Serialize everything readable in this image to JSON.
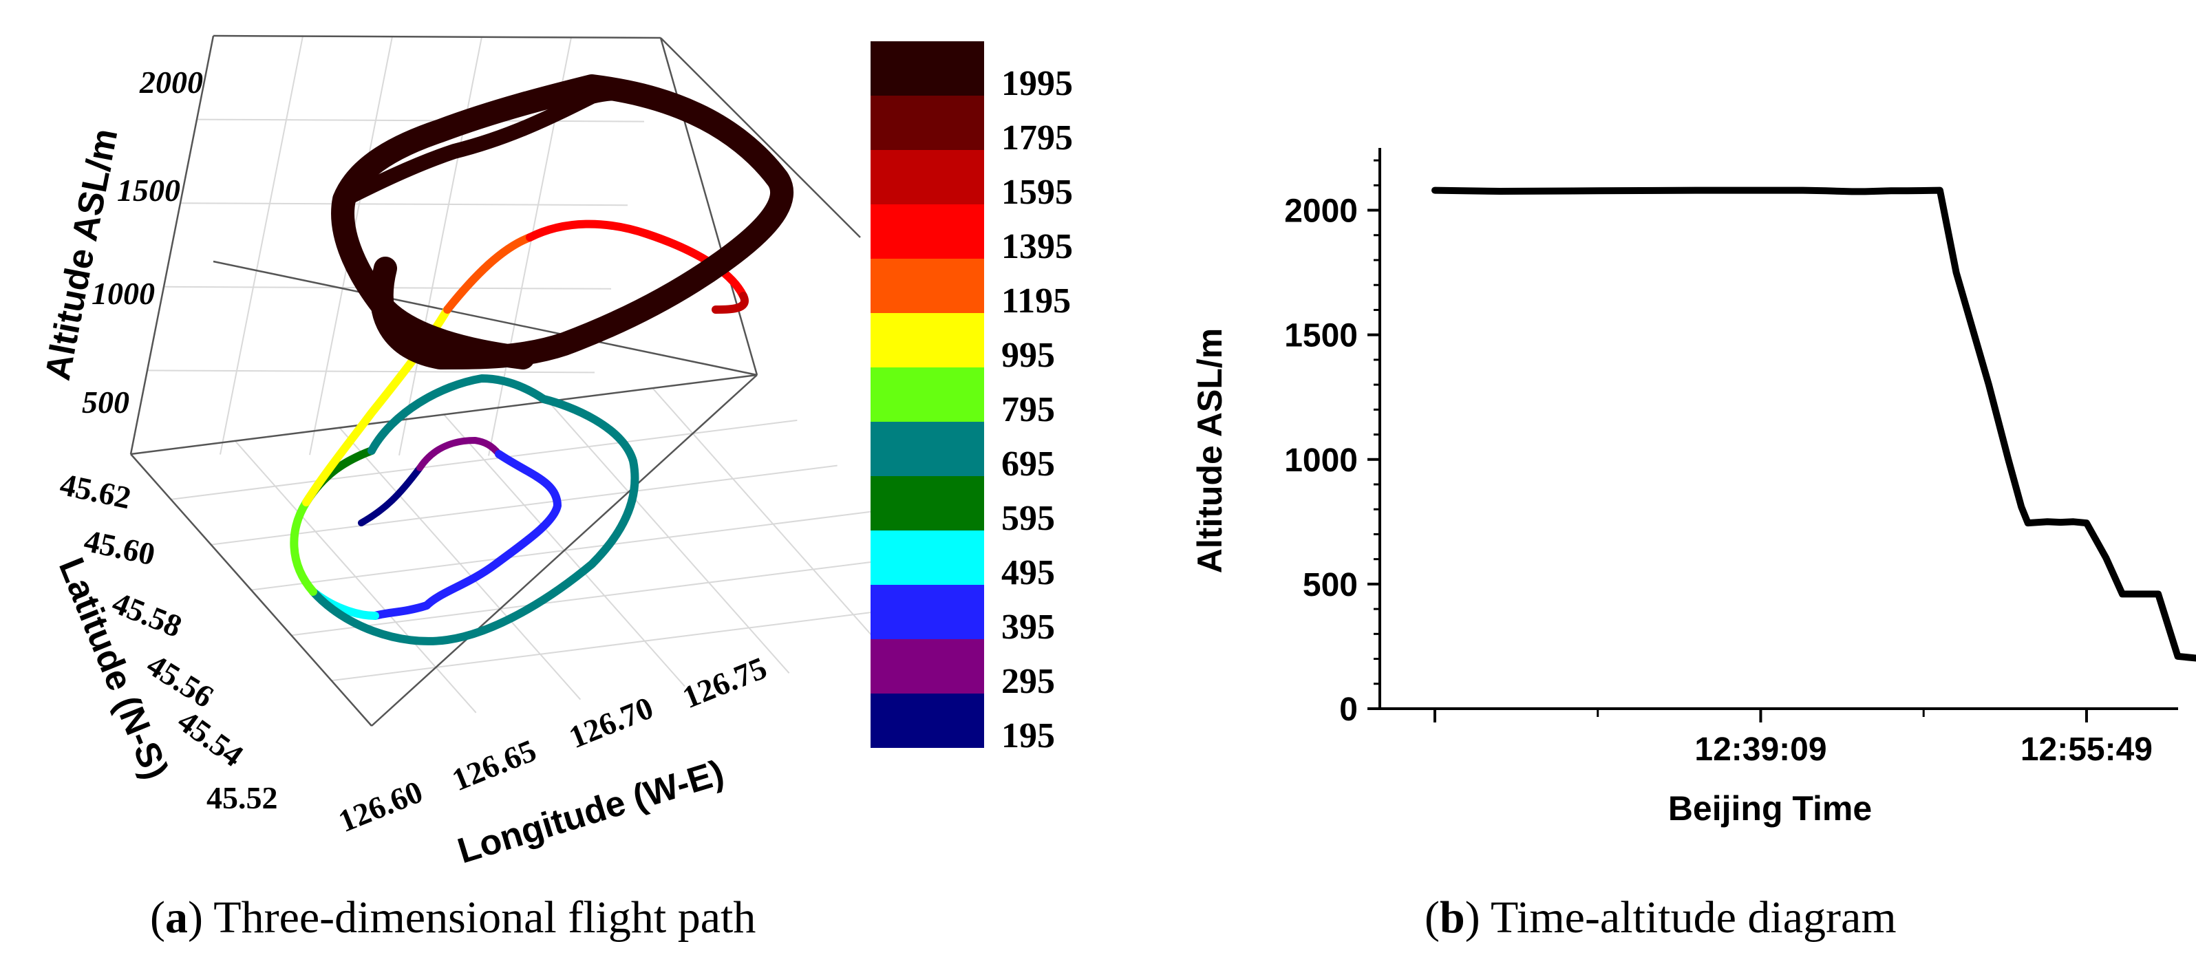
{
  "captions": {
    "a": {
      "letter": "a",
      "text": " Three-dimensional flight path"
    },
    "b": {
      "letter": "b",
      "text": " Time-altitude diagram"
    }
  },
  "chart_data": [
    {
      "type": "line",
      "projection": "3d",
      "zlabel": "Altitude ASL/m",
      "ylabel": "Latitude (N-S)",
      "xlabel": "Longitude (W-E)",
      "z_ticks": [
        "500",
        "1000",
        "1500",
        "2000"
      ],
      "y_ticks": [
        "45.52",
        "45.54",
        "45.56",
        "45.58",
        "45.60",
        "45.62"
      ],
      "x_ticks": [
        "126.60",
        "126.65",
        "126.70",
        "126.75"
      ],
      "colorbar": {
        "labels": [
          "1995",
          "1795",
          "1595",
          "1395",
          "1195",
          "995",
          "795",
          "695",
          "595",
          "495",
          "395",
          "295",
          "195"
        ],
        "colors": [
          "#2a0000",
          "#6b0000",
          "#c00000",
          "#ff0000",
          "#ff5500",
          "#ffff00",
          "#66ff11",
          "#008080",
          "#007700",
          "#00ffff",
          "#2222ff",
          "#800080",
          "#000080"
        ]
      },
      "grid": true
    },
    {
      "type": "line",
      "xlabel": "Beijing Time",
      "ylabel": "Altitude ASL/m",
      "y_ticks": [
        0,
        500,
        1000,
        1500,
        2000
      ],
      "ylim": [
        0,
        2250
      ],
      "x_tick_labels": [
        "12:39:09",
        "12:55:49"
      ],
      "xlim": [
        0,
        2450
      ],
      "series": [
        {
          "color": "#000000",
          "x": [
            0,
            200,
            500,
            800,
            1130,
            1200,
            1280,
            1320,
            1400,
            1450,
            1550,
            1600,
            1700,
            1760,
            1800,
            1820,
            1880,
            1920,
            1960,
            2000,
            2060,
            2110,
            2180,
            2220,
            2280,
            2360,
            2445
          ],
          "y": [
            2080,
            2076,
            2078,
            2080,
            2080,
            2078,
            2075,
            2075,
            2078,
            2078,
            2080,
            1750,
            1300,
            1000,
            810,
            745,
            750,
            748,
            750,
            745,
            605,
            460,
            460,
            460,
            210,
            200,
            198
          ]
        }
      ]
    }
  ]
}
